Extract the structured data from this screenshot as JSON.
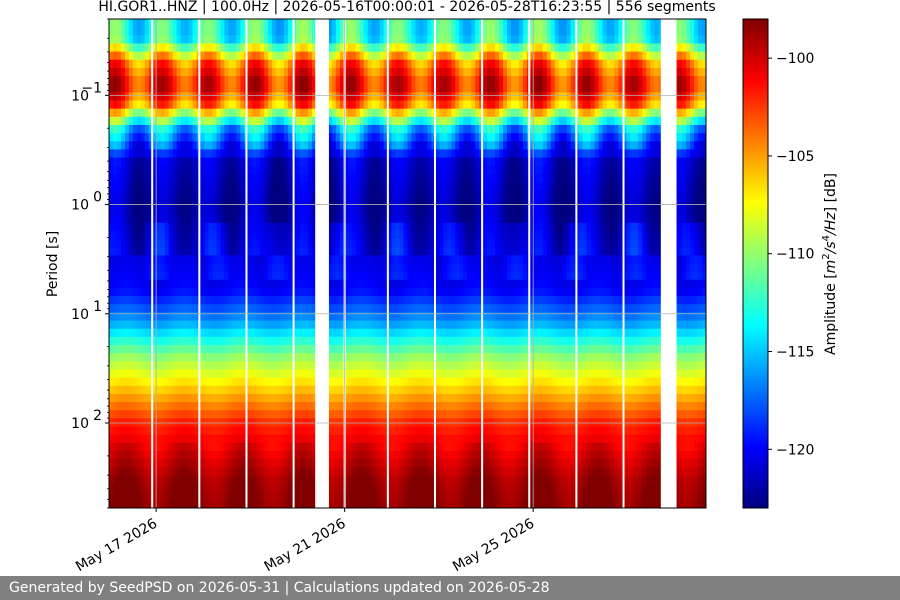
{
  "chart_data": {
    "type": "heatmap",
    "title": "HI.GOR1..HNZ | 100.0Hz | 2026-05-16T00:00:01 - 2026-05-28T16:23:55 | 556 segments",
    "ylabel": "Period [s]",
    "colorbar_label": "Amplitude [m²/s⁴/Hz] [dB]",
    "colorbar_label_parts": [
      "Amplitude [",
      "m",
      "2",
      "/s",
      "4",
      "/Hz",
      "] [dB]"
    ],
    "xlim": [
      "2026-05-16T00:00:00",
      "2026-05-28T16:00:00"
    ],
    "x_ticks": [
      {
        "date": "2026-05-17",
        "label": "May 17 2026"
      },
      {
        "date": "2026-05-21",
        "label": "May 21 2026"
      },
      {
        "date": "2026-05-25",
        "label": "May 25 2026"
      }
    ],
    "yscale": "log",
    "y_inverted": true,
    "ylim": [
      0.02,
      600
    ],
    "y_ticks": [
      {
        "value": 0.1,
        "base": "10",
        "exp": "−1"
      },
      {
        "value": 1,
        "base": "10",
        "exp": "0"
      },
      {
        "value": 10,
        "base": "10",
        "exp": "1"
      },
      {
        "value": 100,
        "base": "10",
        "exp": "2"
      }
    ],
    "colorbar_range": [
      -123,
      -98
    ],
    "colorbar_ticks": [
      {
        "value": -100,
        "label": "−100"
      },
      {
        "value": -105,
        "label": "−105"
      },
      {
        "value": -110,
        "label": "−110"
      },
      {
        "value": -115,
        "label": "−115"
      },
      {
        "value": -120,
        "label": "−120"
      }
    ],
    "colormap": "jet",
    "grid": true,
    "data_gaps": [
      [
        "2026-05-20T09:00:00",
        "2026-05-20T16:00:00"
      ],
      [
        "2026-05-27T17:00:00",
        "2026-05-28T01:00:00"
      ]
    ],
    "thin_gaps": [
      "2026-05-16T22:00:00",
      "2026-05-17T22:00:00",
      "2026-05-18T22:00:00",
      "2026-05-19T22:00:00",
      "2026-05-21T00:00:00",
      "2026-05-21T22:00:00",
      "2026-05-22T22:00:00",
      "2026-05-23T22:00:00",
      "2026-05-24T22:00:00",
      "2026-05-25T22:00:00",
      "2026-05-26T22:00:00"
    ],
    "period_profile": [
      {
        "period": 0.02,
        "level": -113
      },
      {
        "period": 0.03,
        "level": -113
      },
      {
        "period": 0.05,
        "level": -104
      },
      {
        "period": 0.08,
        "level": -101
      },
      {
        "period": 0.12,
        "level": -104
      },
      {
        "period": 0.2,
        "level": -115
      },
      {
        "period": 0.4,
        "level": -121
      },
      {
        "period": 1,
        "level": -122
      },
      {
        "period": 2.5,
        "level": -121
      },
      {
        "period": 6,
        "level": -120
      },
      {
        "period": 12,
        "level": -116
      },
      {
        "period": 25,
        "level": -110
      },
      {
        "period": 50,
        "level": -106
      },
      {
        "period": 100,
        "level": -102
      },
      {
        "period": 200,
        "level": -100
      },
      {
        "period": 350,
        "level": -98.5
      },
      {
        "period": 600,
        "level": -98
      }
    ]
  },
  "footer": {
    "text": "Generated by SeedPSD on 2026-05-31 | Calculations updated on 2026-05-28"
  }
}
